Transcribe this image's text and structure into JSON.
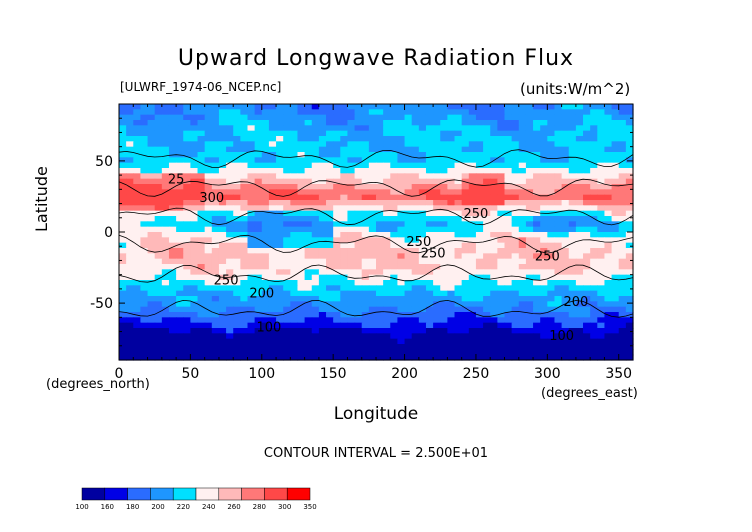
{
  "chart_data": {
    "type": "heatmap",
    "title": "Upward Longwave Radiation Flux",
    "subtitle_left": "[ULWRF_1974-06_NCEP.nc]",
    "subtitle_right": "(units:W/m^2)",
    "xlabel": "Longitude",
    "ylabel": "Latitude",
    "x_units_label": "(degrees_east)",
    "y_units_label": "(degrees_north)",
    "xlim": [
      0,
      360
    ],
    "ylim": [
      -90,
      90
    ],
    "x_ticks": [
      "0",
      "50",
      "100",
      "150",
      "200",
      "250",
      "300",
      "350"
    ],
    "y_ticks": [
      "-50",
      "0",
      "50"
    ],
    "contour_interval_text": "CONTOUR INTERVAL = 2.500E+01",
    "contour_labels": [
      "300",
      "250",
      "250",
      "250",
      "250",
      "250",
      "200",
      "200",
      "100",
      "100",
      "25"
    ],
    "colorbar": {
      "levels": [
        "100",
        "160",
        "180",
        "200",
        "220",
        "240",
        "260",
        "280",
        "300",
        "350"
      ],
      "colors": [
        "#0000a0",
        "#0000e6",
        "#2a6cff",
        "#1e96ff",
        "#00e0ff",
        "#fff0f0",
        "#ffb9b9",
        "#ff7878",
        "#ff4848",
        "#ff0000"
      ]
    },
    "zonal_bands_lat_value": [
      {
        "lat": 90,
        "value": 200
      },
      {
        "lat": 70,
        "value": 220
      },
      {
        "lat": 50,
        "value": 225
      },
      {
        "lat": 35,
        "value": 270
      },
      {
        "lat": 25,
        "value": 300
      },
      {
        "lat": 15,
        "value": 250
      },
      {
        "lat": 5,
        "value": 225
      },
      {
        "lat": -5,
        "value": 255
      },
      {
        "lat": -15,
        "value": 265
      },
      {
        "lat": -25,
        "value": 260
      },
      {
        "lat": -35,
        "value": 240
      },
      {
        "lat": -45,
        "value": 215
      },
      {
        "lat": -55,
        "value": 200
      },
      {
        "lat": -65,
        "value": 175
      },
      {
        "lat": -75,
        "value": 140
      },
      {
        "lat": -90,
        "value": 120
      }
    ]
  }
}
